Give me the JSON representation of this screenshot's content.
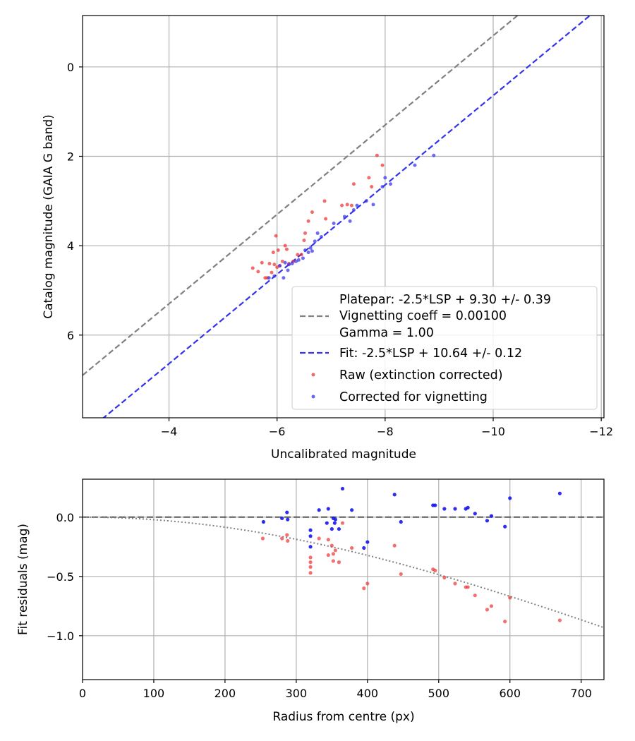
{
  "chart_data": [
    {
      "type": "scatter",
      "title": "",
      "xlabel": "Uncalibrated magnitude",
      "ylabel": "Catalog magnitude (GAIA G band)",
      "xlim": [
        -2.4,
        -12.05
      ],
      "ylim": [
        7.85,
        -1.15
      ],
      "x_inverted": true,
      "y_inverted": true,
      "grid": true,
      "legend_position": "lower-right",
      "xticks": [
        -4,
        -6,
        -8,
        -10,
        -12
      ],
      "xtick_labels": [
        "−4",
        "−6",
        "−8",
        "−10",
        "−12"
      ],
      "yticks": [
        0,
        2,
        4,
        6
      ],
      "ytick_labels": [
        "0",
        "2",
        "4",
        "6"
      ],
      "lines": [
        {
          "name": "Platepar: -2.5*LSP + 9.30 +/- 0.39",
          "color": "#808080",
          "slope": 1,
          "intercept": 9.3,
          "style": "dashed"
        },
        {
          "name": "Fit: -2.5*LSP + 10.64 +/- 0.12",
          "color": "#3333ee",
          "slope": 1,
          "intercept": 10.64,
          "style": "dashed"
        }
      ],
      "legend_extra": [
        "Vignetting coeff = 0.00100",
        "Gamma = 1.00"
      ],
      "series": [
        {
          "name": "Raw (extinction corrected)",
          "color": "#ee3333",
          "points": [
            [
              -5.55,
              4.5
            ],
            [
              -5.65,
              4.58
            ],
            [
              -5.72,
              4.38
            ],
            [
              -5.78,
              4.72
            ],
            [
              -5.82,
              4.72
            ],
            [
              -5.86,
              4.4
            ],
            [
              -5.9,
              4.6
            ],
            [
              -5.93,
              4.15
            ],
            [
              -5.95,
              4.42
            ],
            [
              -5.98,
              3.78
            ],
            [
              -6.0,
              4.48
            ],
            [
              -6.02,
              4.1
            ],
            [
              -6.05,
              4.45
            ],
            [
              -6.1,
              4.35
            ],
            [
              -6.15,
              4.0
            ],
            [
              -6.18,
              4.08
            ],
            [
              -6.22,
              4.4
            ],
            [
              -6.3,
              4.35
            ],
            [
              -6.38,
              4.2
            ],
            [
              -6.45,
              4.2
            ],
            [
              -6.5,
              3.88
            ],
            [
              -6.52,
              3.72
            ],
            [
              -6.58,
              3.45
            ],
            [
              -6.65,
              3.25
            ],
            [
              -6.88,
              3.0
            ],
            [
              -6.9,
              3.4
            ],
            [
              -7.2,
              3.1
            ],
            [
              -7.3,
              3.08
            ],
            [
              -7.38,
              3.1
            ],
            [
              -7.42,
              2.62
            ],
            [
              -7.7,
              2.48
            ],
            [
              -7.75,
              2.68
            ],
            [
              -7.85,
              1.98
            ],
            [
              -7.95,
              2.2
            ]
          ]
        },
        {
          "name": "Corrected for vignetting",
          "color": "#3333ee",
          "points": [
            [
              -5.85,
              4.72
            ],
            [
              -5.95,
              4.68
            ],
            [
              -6.05,
              4.45
            ],
            [
              -6.12,
              4.72
            ],
            [
              -6.15,
              4.38
            ],
            [
              -6.2,
              4.55
            ],
            [
              -6.22,
              4.42
            ],
            [
              -6.28,
              4.4
            ],
            [
              -6.35,
              4.35
            ],
            [
              -6.4,
              4.32
            ],
            [
              -6.48,
              4.28
            ],
            [
              -6.52,
              4.1
            ],
            [
              -6.58,
              4.15
            ],
            [
              -6.62,
              4.05
            ],
            [
              -6.65,
              4.12
            ],
            [
              -6.7,
              3.9
            ],
            [
              -6.75,
              3.72
            ],
            [
              -6.82,
              3.8
            ],
            [
              -7.05,
              3.5
            ],
            [
              -7.25,
              3.35
            ],
            [
              -7.35,
              3.45
            ],
            [
              -7.42,
              3.2
            ],
            [
              -7.48,
              3.1
            ],
            [
              -7.65,
              3.0
            ],
            [
              -7.78,
              3.08
            ],
            [
              -7.95,
              2.68
            ],
            [
              -8.0,
              2.48
            ],
            [
              -8.1,
              2.62
            ],
            [
              -8.55,
              2.2
            ],
            [
              -8.9,
              1.98
            ]
          ]
        }
      ]
    },
    {
      "type": "scatter",
      "title": "",
      "xlabel": "Radius from centre (px)",
      "ylabel": "Fit residuals (mag)",
      "xlim": [
        0,
        732
      ],
      "ylim": [
        -1.37,
        0.32
      ],
      "grid": true,
      "xticks": [
        0,
        100,
        200,
        300,
        400,
        500,
        600,
        700
      ],
      "xtick_labels": [
        "0",
        "100",
        "200",
        "300",
        "400",
        "500",
        "600",
        "700"
      ],
      "yticks": [
        0.0,
        -0.5,
        -1.0
      ],
      "ytick_labels": [
        "0.0",
        "−0.5",
        "−1.0"
      ],
      "reference_line": {
        "y": 0,
        "color": "#555555",
        "style": "dashed"
      },
      "model_curve": {
        "coeff": 0.001,
        "color": "#808080",
        "style": "dotted"
      },
      "series": [
        {
          "name": "Raw (extinction corrected)",
          "color": "#ee3333",
          "points": [
            [
              253,
              -0.18
            ],
            [
              280,
              -0.18
            ],
            [
              287,
              -0.15
            ],
            [
              288,
              -0.2
            ],
            [
              320,
              -0.34
            ],
            [
              320,
              -0.38
            ],
            [
              320,
              -0.47
            ],
            [
              320,
              -0.42
            ],
            [
              332,
              -0.18
            ],
            [
              345,
              -0.19
            ],
            [
              345,
              -0.32
            ],
            [
              350,
              -0.24
            ],
            [
              352,
              -0.31
            ],
            [
              352,
              -0.37
            ],
            [
              355,
              -0.28
            ],
            [
              360,
              -0.38
            ],
            [
              365,
              -0.05
            ],
            [
              378,
              -0.26
            ],
            [
              395,
              -0.6
            ],
            [
              400,
              -0.56
            ],
            [
              438,
              -0.24
            ],
            [
              447,
              -0.48
            ],
            [
              492,
              -0.44
            ],
            [
              495,
              -0.45
            ],
            [
              508,
              -0.51
            ],
            [
              523,
              -0.56
            ],
            [
              538,
              -0.59
            ],
            [
              541,
              -0.59
            ],
            [
              551,
              -0.66
            ],
            [
              568,
              -0.78
            ],
            [
              574,
              -0.75
            ],
            [
              593,
              -0.88
            ],
            [
              600,
              -0.68
            ],
            [
              670,
              -0.87
            ]
          ]
        },
        {
          "name": "Corrected for vignetting",
          "color": "#1111ee",
          "points": [
            [
              254,
              -0.04
            ],
            [
              280,
              -0.01
            ],
            [
              287,
              0.04
            ],
            [
              288,
              -0.02
            ],
            [
              320,
              -0.11
            ],
            [
              320,
              -0.16
            ],
            [
              320,
              -0.25
            ],
            [
              332,
              0.06
            ],
            [
              343,
              -0.05
            ],
            [
              345,
              0.07
            ],
            [
              350,
              -0.1
            ],
            [
              352,
              -0.01
            ],
            [
              354,
              -0.05
            ],
            [
              355,
              -0.02
            ],
            [
              360,
              -0.1
            ],
            [
              365,
              0.24
            ],
            [
              378,
              0.06
            ],
            [
              395,
              -0.26
            ],
            [
              400,
              -0.21
            ],
            [
              438,
              0.19
            ],
            [
              447,
              -0.04
            ],
            [
              492,
              0.1
            ],
            [
              495,
              0.1
            ],
            [
              508,
              0.07
            ],
            [
              523,
              0.07
            ],
            [
              538,
              0.07
            ],
            [
              541,
              0.08
            ],
            [
              551,
              0.03
            ],
            [
              568,
              -0.03
            ],
            [
              574,
              0.01
            ],
            [
              593,
              -0.08
            ],
            [
              600,
              0.16
            ],
            [
              670,
              0.2
            ]
          ]
        }
      ]
    }
  ]
}
